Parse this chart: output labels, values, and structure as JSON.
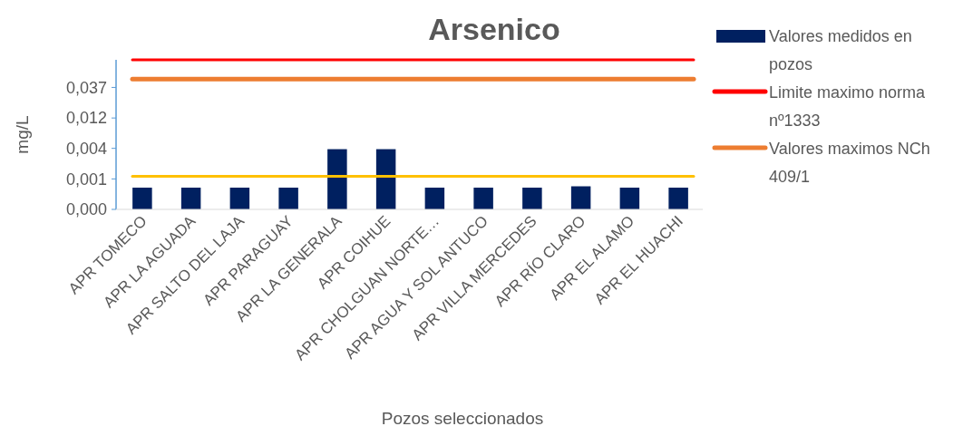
{
  "chart_data": {
    "type": "bar",
    "title": "Arsenico",
    "xlabel": "Pozos seleccionados",
    "ylabel": "mg/L",
    "categories": [
      "APR TOMECO",
      "APR LA AGUADA",
      "APR SALTO DEL LAJA",
      "APR PARAGUAY",
      "APR LA GENERALA",
      "APR COIHUE",
      "APR CHOLGUAN NORTE…",
      "APR AGUA Y SOL ANTUCO",
      "APR VILLA MERCEDES",
      "APR RÍO CLARO",
      "APR EL ALAMO",
      "APR EL HUACHI"
    ],
    "series": [
      {
        "name": "Valores medidos en pozos",
        "color": "#002060",
        "values": [
          0.001,
          0.001,
          0.001,
          0.001,
          0.004,
          0.004,
          0.001,
          0.001,
          0.001,
          0.00105,
          0.001,
          0.001
        ]
      }
    ],
    "log": true,
    "ylim": [
      0.000457,
      0.1
    ],
    "yticks": [
      {
        "value": 0.000457,
        "label": "0,000"
      },
      {
        "value": 0.00137,
        "label": "0,001"
      },
      {
        "value": 0.00412,
        "label": "0,004"
      },
      {
        "value": 0.0123,
        "label": "0,012"
      },
      {
        "value": 0.037,
        "label": "0,037"
      }
    ],
    "ref_lines": [
      {
        "axis": "y",
        "value": 0.1,
        "label": "Limite maximo norma nº1333",
        "color": "#ff0000"
      },
      {
        "axis": "y",
        "value": 0.05,
        "label": "Valores maximos NCh 409/1",
        "color": "#ed7d31"
      },
      {
        "axis": "y",
        "value": 0.0015,
        "color": "#ffc000"
      }
    ],
    "legend": "right",
    "grid": false
  }
}
